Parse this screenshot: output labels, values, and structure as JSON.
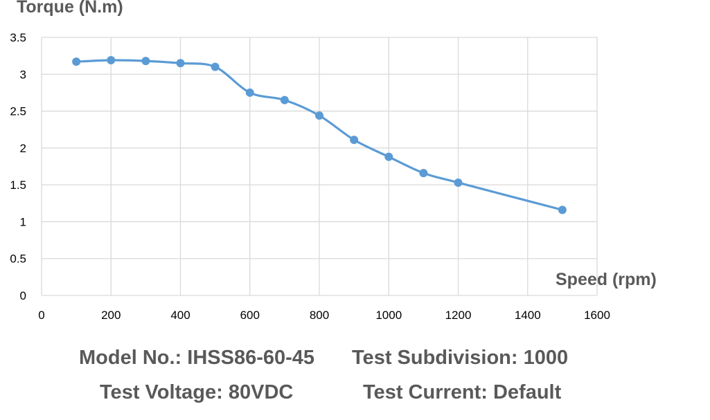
{
  "chart_data": {
    "type": "line",
    "ylabel": "Torque (N.m)",
    "xlabel": "Speed (rpm)",
    "xlim": [
      0,
      1600
    ],
    "ylim": [
      0,
      3.5
    ],
    "x_ticks": [
      "0",
      "200",
      "400",
      "600",
      "800",
      "1000",
      "1200",
      "1400",
      "1600"
    ],
    "y_ticks": [
      "0",
      "0.5",
      "1",
      "1.5",
      "2",
      "2.5",
      "3",
      "3.5"
    ],
    "grid": true,
    "series": [
      {
        "color": "#5b9bd5",
        "x": [
          100,
          200,
          300,
          400,
          500,
          600,
          700,
          800,
          900,
          1000,
          1100,
          1200,
          1500
        ],
        "y": [
          3.17,
          3.19,
          3.18,
          3.15,
          3.1,
          2.75,
          2.65,
          2.44,
          2.11,
          1.88,
          1.66,
          1.53,
          1.16
        ]
      }
    ]
  },
  "info": {
    "model": "Model No.: IHSS86-60-45",
    "subdivision": "Test Subdivision: 1000",
    "voltage": "Test Voltage: 80VDC",
    "current": "Test Current: Default"
  }
}
